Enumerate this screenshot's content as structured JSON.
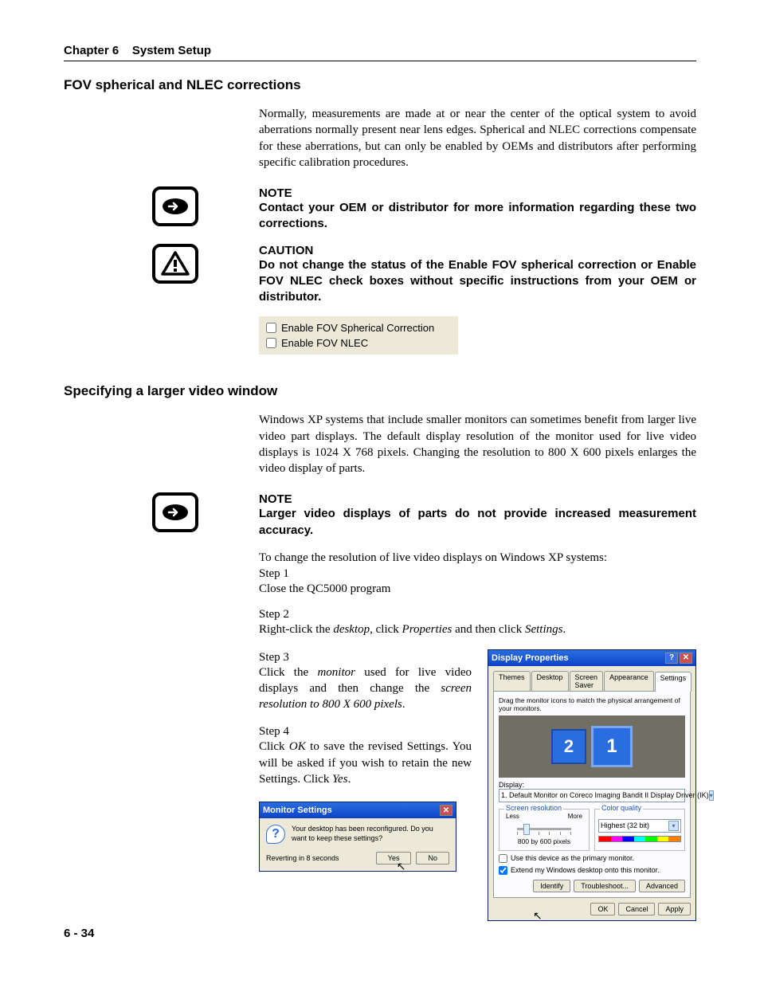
{
  "header": {
    "chapter": "Chapter 6",
    "title": "System Setup"
  },
  "section1": {
    "heading": "FOV spherical and NLEC corrections",
    "para": "Normally, measurements are made at or near the center of the optical system to avoid aberrations normally present near lens edges.  Spherical and NLEC corrections compensate for these aberrations, but can only be enabled by OEMs and distributors after performing specific calibration procedures.",
    "note_label": "NOTE",
    "note_text": "Contact your OEM or distributor for more information regarding these two corrections.",
    "caution_label": "CAUTION",
    "caution_text": "Do not change the status of the Enable FOV spherical correction or Enable FOV NLEC check boxes without specific instructions from your OEM or distributor.",
    "cb1": "Enable FOV Spherical Correction",
    "cb2": "Enable FOV NLEC"
  },
  "section2": {
    "heading": "Specifying a larger video window",
    "para": "Windows XP systems that include smaller monitors can sometimes benefit from larger live video part displays.  The default display resolution of the monitor used for live video displays is 1024 X 768 pixels.  Changing the resolution to 800 X 600 pixels enlarges the video display of parts.",
    "note_label": "NOTE",
    "note_text": "Larger video displays of parts do not provide increased measurement accuracy.",
    "intro": "To change the resolution of live video displays on Windows XP systems:",
    "step1_label": "Step 1",
    "step1_text": "Close the QC5000 program",
    "step2_label": "Step 2",
    "step2_pre": "Right-click the ",
    "step2_i1": "desktop",
    "step2_mid": ", click ",
    "step2_i2": "Properties",
    "step2_mid2": " and then click ",
    "step2_i3": "Settings",
    "step2_end": ".",
    "step3_label": "Step 3",
    "step3_pre": "Click the ",
    "step3_i1": "monitor",
    "step3_mid": " used for live video displays and then change the ",
    "step3_i2": "screen resolution to 800 X 600 pixels",
    "step3_end": ".",
    "step4_label": "Step 4",
    "step4_pre": "Click ",
    "step4_i1": "OK",
    "step4_mid": " to save the revised Settings.  You will be asked if you wish to retain the new Settings.  Click ",
    "step4_i2": "Yes",
    "step4_end": "."
  },
  "display_props": {
    "title": "Display Properties",
    "tabs": [
      "Themes",
      "Desktop",
      "Screen Saver",
      "Appearance",
      "Settings"
    ],
    "drag_text": "Drag the monitor icons to match the physical arrangement of your monitors.",
    "mon2": "2",
    "mon1": "1",
    "display_label": "Display:",
    "display_value": "1. Default Monitor on Coreco Imaging Bandit II Display Driver (IK)",
    "sr_title": "Screen resolution",
    "sr_less": "Less",
    "sr_more": "More",
    "sr_value": "800 by 600 pixels",
    "cq_title": "Color quality",
    "cq_value": "Highest (32 bit)",
    "colorbar": [
      "#ff0000",
      "#ff00ff",
      "#0000ff",
      "#00ffff",
      "#00ff00",
      "#ffff00",
      "#ff8000"
    ],
    "cb1": "Use this device as the primary monitor.",
    "cb2": "Extend my Windows desktop onto this monitor.",
    "btn_identify": "Identify",
    "btn_trouble": "Troubleshoot...",
    "btn_adv": "Advanced",
    "btn_ok": "OK",
    "btn_cancel": "Cancel",
    "btn_apply": "Apply"
  },
  "monitor_settings": {
    "title": "Monitor Settings",
    "msg": "Your desktop has been reconfigured.  Do you want to keep these settings?",
    "revert": "Reverting in 8 seconds",
    "yes": "Yes",
    "no": "No"
  },
  "page_num": "6 - 34"
}
